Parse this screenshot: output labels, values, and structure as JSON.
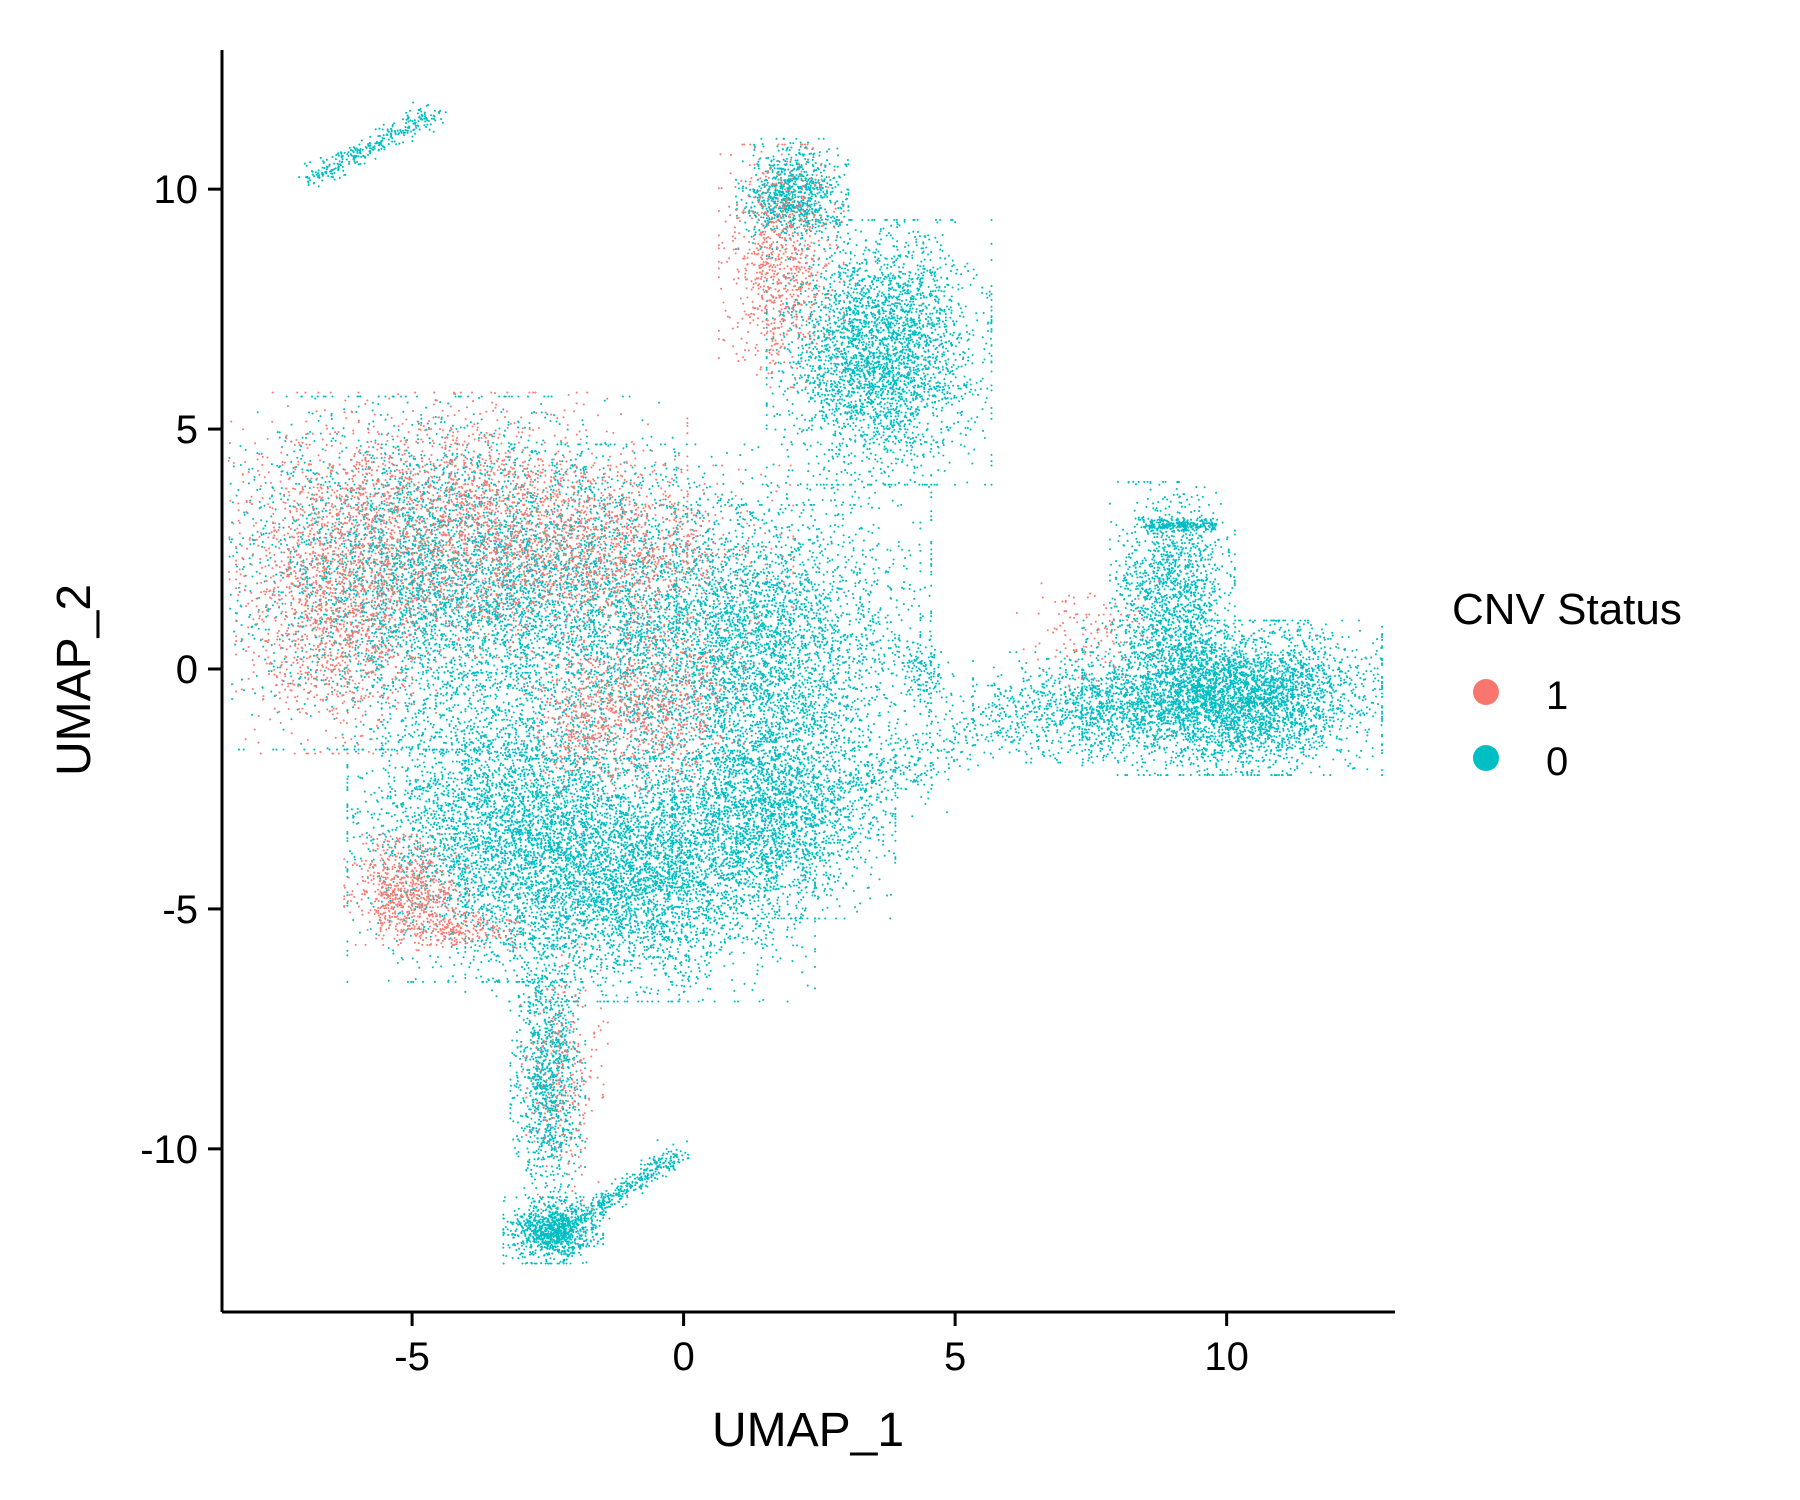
{
  "chart_data": {
    "type": "scatter",
    "title": "",
    "xlabel": "UMAP_1",
    "ylabel": "UMAP_2",
    "xlim": [
      -8.5,
      13.1
    ],
    "ylim": [
      -13.4,
      12.9
    ],
    "xticks": [
      -5,
      0,
      5,
      10
    ],
    "yticks": [
      -10,
      -5,
      0,
      5,
      10
    ],
    "grid": false,
    "legend": {
      "title": "CNV Status",
      "placement": "right",
      "entries": [
        {
          "label": "1",
          "color": "#F8766D"
        },
        {
          "label": "0",
          "color": "#00BFC4"
        }
      ]
    },
    "series": [
      {
        "name": "1",
        "color": "#F8766D",
        "clusters": [
          {
            "cx": -4.3,
            "cy": 3.0,
            "sx": 1.9,
            "sy": 1.2,
            "n": 2600,
            "desc": "upper main lobe"
          },
          {
            "cx": -6.4,
            "cy": 1.0,
            "sx": 0.8,
            "sy": 1.2,
            "n": 1100,
            "desc": "left edge of main lobe"
          },
          {
            "cx": -1.2,
            "cy": 2.4,
            "sx": 1.4,
            "sy": 0.8,
            "n": 900,
            "desc": "upper right main lobe"
          },
          {
            "cx": -0.5,
            "cy": -0.7,
            "sx": 0.7,
            "sy": 0.8,
            "n": 700,
            "desc": "center patch"
          },
          {
            "cx": -1.9,
            "cy": -1.1,
            "sx": 0.45,
            "sy": 0.7,
            "n": 350,
            "desc": "center-left patch"
          },
          {
            "cx": -5.1,
            "cy": -4.6,
            "sx": 0.5,
            "sy": 0.5,
            "n": 650,
            "desc": "lower left blob"
          },
          {
            "cx": -4.2,
            "cy": -5.4,
            "sx": 0.6,
            "sy": 0.2,
            "n": 250,
            "desc": "lower left rim"
          },
          {
            "cx": 1.8,
            "cy": 8.4,
            "sx": 0.5,
            "sy": 1.1,
            "n": 800,
            "desc": "upper island"
          },
          {
            "cx": -2.2,
            "cy": -8.5,
            "sx": 0.35,
            "sy": 1.2,
            "n": 250,
            "desc": "stem"
          },
          {
            "cx": 7.5,
            "cy": 0.8,
            "sx": 0.6,
            "sy": 0.5,
            "n": 120,
            "desc": "right arm start"
          }
        ]
      },
      {
        "name": "0",
        "color": "#00BFC4",
        "clusters": [
          {
            "cx": -4.5,
            "cy": 2.0,
            "sx": 1.9,
            "sy": 1.6,
            "n": 4500,
            "desc": "main lobe upper"
          },
          {
            "cx": -0.5,
            "cy": 1.0,
            "sx": 2.2,
            "sy": 1.6,
            "n": 3800,
            "desc": "main lobe right"
          },
          {
            "cx": -3.2,
            "cy": -3.3,
            "sx": 1.3,
            "sy": 1.4,
            "n": 3800,
            "desc": "main lobe lower left"
          },
          {
            "cx": -0.8,
            "cy": -4.4,
            "sx": 1.4,
            "sy": 1.1,
            "n": 3600,
            "desc": "main lobe lower"
          },
          {
            "cx": 1.6,
            "cy": -2.9,
            "sx": 1.0,
            "sy": 1.0,
            "n": 2500,
            "desc": "main lobe lower right"
          },
          {
            "cx": 1.6,
            "cy": 0.2,
            "sx": 1.2,
            "sy": 1.4,
            "n": 2200,
            "desc": "main lobe right edge"
          },
          {
            "cx": 3.6,
            "cy": 6.6,
            "sx": 0.9,
            "sy": 1.2,
            "n": 3200,
            "desc": "upper island body"
          },
          {
            "cx": 2.0,
            "cy": 9.9,
            "sx": 0.45,
            "sy": 0.5,
            "n": 900,
            "desc": "upper island top"
          },
          {
            "cx": 10.1,
            "cy": -0.6,
            "sx": 1.2,
            "sy": 0.7,
            "n": 4200,
            "desc": "right island"
          },
          {
            "cx": 9.0,
            "cy": 1.6,
            "sx": 0.5,
            "sy": 1.0,
            "n": 1300,
            "desc": "right island upper neck"
          },
          {
            "cx": 7.4,
            "cy": -0.8,
            "sx": 0.9,
            "sy": 0.5,
            "n": 900,
            "desc": "right arm"
          },
          {
            "cx": -2.5,
            "cy": -8.6,
            "sx": 0.3,
            "sy": 1.3,
            "n": 1100,
            "desc": "stem"
          },
          {
            "cx": -2.4,
            "cy": -11.7,
            "sx": 0.4,
            "sy": 0.3,
            "n": 900,
            "desc": "stem foot"
          }
        ],
        "trails": [
          {
            "x1": -6.9,
            "y1": 10.2,
            "x2": -4.6,
            "y2": 11.6,
            "n": 320,
            "w": 0.12,
            "desc": "top-left filament"
          },
          {
            "x1": -2.5,
            "y1": -11.9,
            "x2": -0.1,
            "y2": -10.1,
            "n": 450,
            "w": 0.12,
            "desc": "bottom tail"
          },
          {
            "x1": 3.2,
            "y1": -2.5,
            "x2": 6.0,
            "y2": -1.0,
            "n": 300,
            "w": 0.35,
            "desc": "bridge to right arm"
          },
          {
            "x1": 4.6,
            "y1": -0.5,
            "x2": 4.3,
            "y2": 0.4,
            "n": 150,
            "w": 0.25,
            "desc": "main lobe right knob"
          },
          {
            "x1": 8.5,
            "y1": 3.0,
            "x2": 9.8,
            "y2": 3.0,
            "n": 250,
            "w": 0.08,
            "desc": "right island top rim"
          }
        ]
      }
    ]
  }
}
